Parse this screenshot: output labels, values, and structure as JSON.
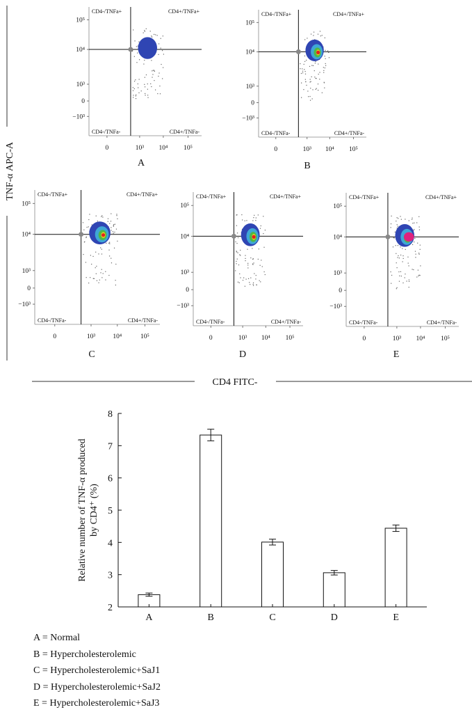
{
  "flow_panel": {
    "y_axis_label": "TNF-α APC-A",
    "x_axis_label": "CD4 FITC-",
    "quadrants": {
      "top_left": "CD4-/TNFa+",
      "top_right": "CD4+/TNFa+",
      "bottom_left": "CD4-/TNFa-",
      "bottom_right": "CD4+/TNFa-"
    },
    "y_ticks": [
      "10⁵",
      "10⁴",
      "10³",
      "0",
      "−10³"
    ],
    "x_ticks": [
      "0",
      "10³",
      "10⁴",
      "10⁵"
    ],
    "plots": [
      {
        "label": "A",
        "intensity": 1
      },
      {
        "label": "B",
        "intensity": 2
      },
      {
        "label": "C",
        "intensity": 2
      },
      {
        "label": "D",
        "intensity": 2
      },
      {
        "label": "E",
        "intensity": 3
      }
    ],
    "colors": {
      "blue": "#2f45b3",
      "cyan": "#3fa7d6",
      "green": "#4fb848",
      "yellow": "#e8d11a",
      "red": "#e02222",
      "magenta": "#e0227d"
    }
  },
  "chart_data": {
    "type": "bar",
    "categories": [
      "A",
      "B",
      "C",
      "D",
      "E"
    ],
    "values": [
      2.38,
      7.33,
      4.01,
      3.06,
      4.44
    ],
    "errors": [
      0.05,
      0.18,
      0.09,
      0.07,
      0.1
    ],
    "title": "",
    "xlabel": "",
    "ylabel_line1": "Relative number of TNF-α produced",
    "ylabel_line2": "by CD4⁺ (%)",
    "ylim": [
      2,
      8
    ],
    "yticks": [
      2,
      3,
      4,
      5,
      6,
      7,
      8
    ],
    "grid": false
  },
  "legend": [
    "A = Normal",
    "B = Hypercholesterolemic",
    "C = Hypercholesterolemic+SaJ1",
    "D = Hypercholesterolemic+SaJ2",
    "E = Hypercholesterolemic+SaJ3"
  ]
}
